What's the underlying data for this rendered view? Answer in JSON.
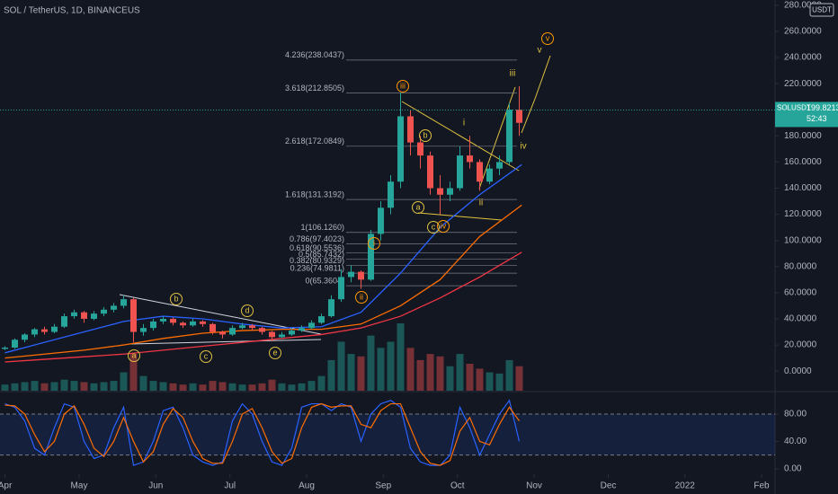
{
  "header": {
    "symbol": "SOL / TetherUS, 1D, BINANCEUS",
    "currency": "USDT",
    "badge": "SOLUSDT",
    "countdown": "52:43"
  },
  "chart_data": [
    {
      "type": "candlestick",
      "x": [
        0,
        4,
        8,
        12,
        16,
        20,
        24,
        28,
        32,
        36,
        40,
        44,
        48,
        52,
        56,
        60,
        64,
        68,
        72,
        76,
        80,
        84,
        88,
        92,
        96,
        100,
        104,
        108,
        112,
        116,
        120,
        124,
        128,
        132,
        136,
        140,
        144,
        148,
        152,
        156,
        160,
        164,
        168,
        172,
        176,
        180,
        184,
        188,
        192,
        196,
        200,
        204,
        208
      ],
      "open": [
        17,
        18,
        24,
        28,
        32,
        30,
        34,
        42,
        45,
        40,
        44,
        47,
        50,
        55,
        30,
        33,
        38,
        40,
        37,
        35,
        38,
        36,
        30,
        28,
        33,
        35,
        33,
        30,
        26,
        28,
        31,
        33,
        37,
        42,
        55,
        72,
        76,
        70,
        105,
        125,
        145,
        195,
        175,
        165,
        140,
        135,
        140,
        165,
        160,
        145,
        155,
        160,
        200
      ],
      "high": [
        19,
        25,
        29,
        33,
        34,
        36,
        44,
        47,
        46,
        46,
        49,
        52,
        58,
        56,
        36,
        40,
        42,
        41,
        38,
        40,
        39,
        37,
        31,
        35,
        37,
        36,
        34,
        31,
        30,
        33,
        35,
        39,
        44,
        58,
        78,
        81,
        77,
        108,
        130,
        150,
        213,
        200,
        180,
        168,
        150,
        145,
        172,
        180,
        162,
        158,
        165,
        205,
        218
      ],
      "low": [
        16,
        17,
        22,
        26,
        28,
        29,
        33,
        40,
        37,
        39,
        42,
        45,
        48,
        22,
        27,
        31,
        36,
        35,
        33,
        34,
        34,
        28,
        25,
        27,
        32,
        31,
        28,
        23,
        25,
        27,
        30,
        32,
        36,
        41,
        53,
        68,
        63,
        69,
        100,
        120,
        140,
        165,
        155,
        135,
        120,
        130,
        138,
        155,
        138,
        143,
        150,
        158,
        180
      ],
      "close": [
        18,
        24,
        28,
        32,
        30,
        34,
        42,
        45,
        40,
        44,
        47,
        50,
        55,
        30,
        33,
        38,
        40,
        37,
        35,
        38,
        36,
        30,
        28,
        33,
        35,
        33,
        30,
        26,
        28,
        31,
        33,
        37,
        42,
        55,
        72,
        76,
        70,
        105,
        125,
        145,
        195,
        175,
        165,
        140,
        135,
        140,
        165,
        160,
        145,
        155,
        160,
        200,
        190
      ],
      "volume": [
        5,
        6,
        7,
        8,
        6,
        7,
        9,
        8,
        7,
        6,
        7,
        8,
        15,
        30,
        12,
        8,
        7,
        6,
        5,
        6,
        5,
        8,
        7,
        6,
        5,
        5,
        6,
        9,
        6,
        5,
        6,
        8,
        12,
        25,
        40,
        30,
        28,
        45,
        35,
        40,
        55,
        35,
        25,
        30,
        28,
        20,
        30,
        22,
        18,
        15,
        14,
        25,
        20
      ],
      "up_color": "#26a69a",
      "down_color": "#ef5350",
      "xlim": [
        -2,
        312
      ],
      "xticks": [
        {
          "value": 0,
          "label": "Apr"
        },
        {
          "value": 30,
          "label": "May"
        },
        {
          "value": 61,
          "label": "Jun"
        },
        {
          "value": 91,
          "label": "Jul"
        },
        {
          "value": 122,
          "label": "Aug"
        },
        {
          "value": 153,
          "label": "Sep"
        },
        {
          "value": 183,
          "label": "Oct"
        },
        {
          "value": 214,
          "label": "Nov"
        },
        {
          "value": 244,
          "label": "Dec"
        },
        {
          "value": 275,
          "label": "2022"
        },
        {
          "value": 306,
          "label": "Feb"
        }
      ],
      "ylim": [
        -15,
        284
      ],
      "yticks": [
        {
          "value": 0,
          "label": "0.0000"
        },
        {
          "value": 20,
          "label": "20.0000"
        },
        {
          "value": 40,
          "label": "40.0000"
        },
        {
          "value": 60,
          "label": "60.0000"
        },
        {
          "value": 80,
          "label": "80.0000"
        },
        {
          "value": 100,
          "label": "100.0000"
        },
        {
          "value": 120,
          "label": "120.0000"
        },
        {
          "value": 140,
          "label": "140.0000"
        },
        {
          "value": 160,
          "label": "160.0000"
        },
        {
          "value": 180,
          "label": "180.0000"
        },
        {
          "value": 220,
          "label": "220.0000"
        },
        {
          "value": 240,
          "label": "240.0000"
        },
        {
          "value": 260,
          "label": "260.0000"
        },
        {
          "value": 280,
          "label": "280.0000"
        }
      ],
      "last_price": 199.8213,
      "overlays": [
        {
          "color": "#2962ff",
          "x": [
            0,
            16,
            32,
            48,
            64,
            80,
            96,
            112,
            128,
            144,
            160,
            176,
            192,
            209
          ],
          "values": [
            14,
            22,
            30,
            38,
            42,
            40,
            36,
            33,
            34,
            45,
            75,
            110,
            135,
            158
          ]
        },
        {
          "color": "#ff6d00",
          "x": [
            0,
            16,
            32,
            48,
            64,
            80,
            96,
            112,
            128,
            144,
            160,
            176,
            192,
            209
          ],
          "values": [
            10,
            13,
            16,
            20,
            25,
            29,
            31,
            32,
            32,
            36,
            50,
            70,
            103,
            127
          ]
        },
        {
          "color": "#f23645",
          "x": [
            0,
            16,
            32,
            48,
            64,
            80,
            96,
            112,
            128,
            144,
            160,
            176,
            192,
            209
          ],
          "values": [
            7,
            9,
            11,
            13,
            16,
            19,
            22,
            25,
            28,
            33,
            42,
            56,
            72,
            91
          ]
        }
      ],
      "fib": {
        "values": [
          238.0437,
          212.8505,
          172.0849,
          131.3192,
          106.126,
          97.4023,
          90.5536,
          85.7432,
          80.9329,
          74.9811,
          65.3604
        ],
        "value_labels": [
          "4.236(238.0437)",
          "3.618(212.8505)",
          "2.618(172.0849)",
          "1.618(131.3192)",
          "1(106.1260)",
          "0.786(97.4023)",
          "0.618(90.5536)",
          "0.5(85.7432)",
          "0.382(80.9329)",
          "0.236(74.9811)",
          "0(65.3604)"
        ],
        "color": "#4caf50"
      },
      "annotations": [
        "a",
        "b",
        "c",
        "d",
        "e",
        "b",
        "a",
        "c",
        "iii",
        "ii",
        "i",
        "iv",
        "v",
        "i",
        "ii",
        "iii",
        "iv",
        "v"
      ]
    },
    {
      "type": "line",
      "x": [
        0,
        4,
        8,
        12,
        16,
        20,
        24,
        28,
        32,
        36,
        40,
        44,
        48,
        52,
        56,
        60,
        64,
        68,
        72,
        76,
        80,
        84,
        88,
        92,
        96,
        100,
        104,
        108,
        112,
        116,
        120,
        124,
        128,
        132,
        136,
        140,
        144,
        148,
        152,
        156,
        160,
        164,
        168,
        172,
        176,
        180,
        184,
        188,
        192,
        196,
        200,
        204,
        208
      ],
      "series": [
        {
          "color": "#2962ff",
          "values": [
            95,
            90,
            70,
            30,
            20,
            60,
            95,
            90,
            40,
            15,
            20,
            60,
            90,
            5,
            10,
            40,
            85,
            90,
            60,
            20,
            10,
            5,
            10,
            70,
            95,
            80,
            40,
            10,
            5,
            30,
            90,
            95,
            95,
            85,
            95,
            90,
            40,
            80,
            95,
            100,
            90,
            30,
            10,
            5,
            5,
            20,
            90,
            60,
            20,
            50,
            80,
            100,
            40
          ]
        },
        {
          "color": "#ff6d00",
          "values": [
            93,
            92,
            80,
            50,
            25,
            40,
            80,
            92,
            65,
            30,
            18,
            40,
            75,
            40,
            10,
            25,
            65,
            88,
            75,
            40,
            15,
            8,
            8,
            40,
            80,
            88,
            60,
            25,
            8,
            15,
            60,
            90,
            95,
            90,
            92,
            92,
            65,
            60,
            85,
            95,
            95,
            60,
            25,
            8,
            5,
            12,
            55,
            75,
            40,
            35,
            65,
            90,
            70
          ]
        }
      ],
      "band": [
        20,
        80
      ],
      "xlim": [
        -2,
        312
      ],
      "ylim": [
        -8,
        111.5
      ],
      "yticks": [
        {
          "value": 0,
          "label": "0.00"
        },
        {
          "value": 40,
          "label": "40.00"
        },
        {
          "value": 80,
          "label": "80.00"
        }
      ]
    }
  ]
}
